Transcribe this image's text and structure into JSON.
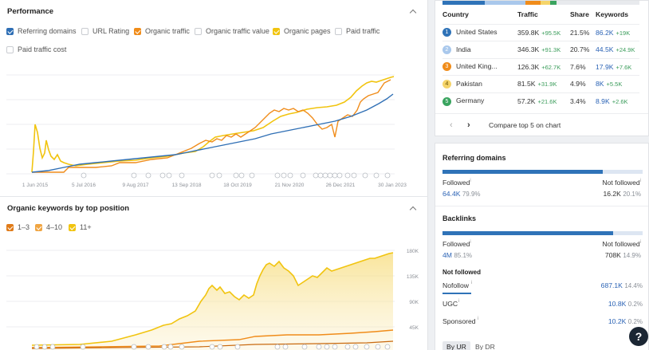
{
  "performance": {
    "title": "Performance",
    "legend": [
      {
        "label": "Referring domains",
        "checked": true,
        "color": "#2f6fb5"
      },
      {
        "label": "URL Rating",
        "checked": false,
        "color": ""
      },
      {
        "label": "Organic traffic",
        "checked": true,
        "color": "#f08c1a"
      },
      {
        "label": "Organic traffic value",
        "checked": false,
        "color": ""
      },
      {
        "label": "Organic pages",
        "checked": true,
        "color": "#f1c40f"
      },
      {
        "label": "Paid traffic",
        "checked": false,
        "color": ""
      },
      {
        "label": "Paid traffic cost",
        "checked": false,
        "color": ""
      }
    ],
    "x_ticks": [
      "1 Jun 2015",
      "5 Jul 2016",
      "9 Aug 2017",
      "13 Sep 2018",
      "18 Oct 2019",
      "21 Nov 2020",
      "26 Dec 2021",
      "30 Jan 2023"
    ]
  },
  "keywords": {
    "title": "Organic keywords by top position",
    "legend": [
      {
        "label": "1–3",
        "checked": true,
        "color": "#e07b18"
      },
      {
        "label": "4–10",
        "checked": true,
        "color": "#f0a542"
      },
      {
        "label": "11+",
        "checked": true,
        "color": "#f1c40f"
      }
    ],
    "y_ticks": [
      "180K",
      "135K",
      "90K",
      "45K"
    ]
  },
  "countries": {
    "headers": [
      "Country",
      "Traffic",
      "Share",
      "Keywords"
    ],
    "rows": [
      {
        "rank": "1",
        "name": "United States",
        "traffic": "359.8K",
        "traffic_change": "+95.5K",
        "share": "21.5%",
        "keywords": "86.2K",
        "keywords_change": "+19K",
        "color": "#2f73b8"
      },
      {
        "rank": "2",
        "name": "India",
        "traffic": "346.3K",
        "traffic_change": "+91.3K",
        "share": "20.7%",
        "keywords": "44.5K",
        "keywords_change": "+24.9K",
        "color": "#a9c8ec"
      },
      {
        "rank": "3",
        "name": "United King...",
        "traffic": "126.3K",
        "traffic_change": "+62.7K",
        "share": "7.6%",
        "keywords": "17.9K",
        "keywords_change": "+7.6K",
        "color": "#f08c1a"
      },
      {
        "rank": "4",
        "name": "Pakistan",
        "traffic": "81.5K",
        "traffic_change": "+31.9K",
        "share": "4.9%",
        "keywords": "8K",
        "keywords_change": "+5.5K",
        "color": "#f5d46a"
      },
      {
        "rank": "5",
        "name": "Germany",
        "traffic": "57.2K",
        "traffic_change": "+21.6K",
        "share": "3.4%",
        "keywords": "8.9K",
        "keywords_change": "+2.6K",
        "color": "#3aa45f"
      }
    ],
    "compare_label": "Compare top 5 on chart"
  },
  "referring_domains": {
    "title": "Referring domains",
    "followed_label": "Followed",
    "followed_value": "64.4K",
    "followed_pct": "79.9%",
    "not_followed_label": "Not followed",
    "not_followed_value": "16.2K",
    "not_followed_pct": "20.1%",
    "followed_fraction": 0.799
  },
  "backlinks": {
    "title": "Backlinks",
    "followed_label": "Followed",
    "followed_value": "4M",
    "followed_pct": "85.1%",
    "not_followed_label": "Not followed",
    "not_followed_value": "708K",
    "not_followed_pct": "14.9%",
    "followed_fraction": 0.851,
    "breakdown_title": "Not followed",
    "breakdown": [
      {
        "label": "Nofollow",
        "value": "687.1K",
        "pct": "14.4%"
      },
      {
        "label": "UGC",
        "value": "10.8K",
        "pct": "0.2%"
      },
      {
        "label": "Sponsored",
        "value": "10.2K",
        "pct": "0.2%"
      }
    ],
    "tabs": [
      "By UR",
      "By DR"
    ]
  },
  "help_label": "?"
}
